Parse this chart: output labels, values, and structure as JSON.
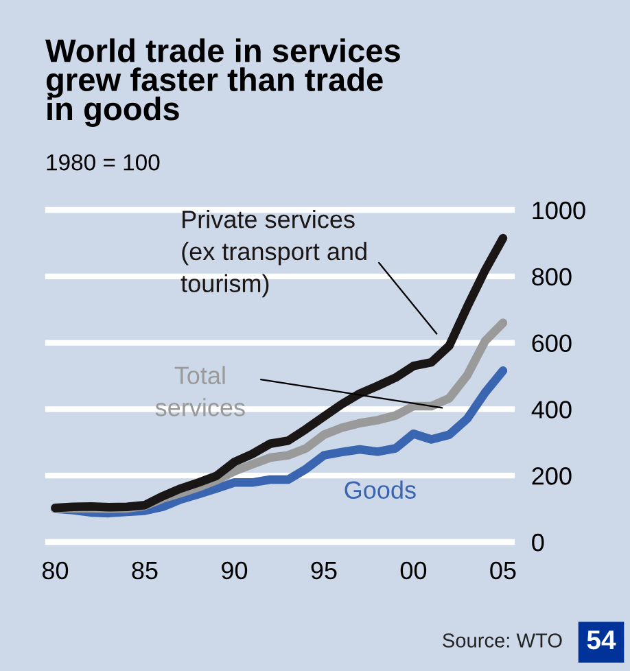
{
  "chart_data": {
    "type": "line",
    "title": "World trade in services\ngrew faster than trade\nin goods",
    "subtitle": "1980 = 100",
    "x": [
      1980,
      1981,
      1982,
      1983,
      1984,
      1985,
      1986,
      1987,
      1988,
      1989,
      1990,
      1991,
      1992,
      1993,
      1994,
      1995,
      1996,
      1997,
      1998,
      1999,
      2000,
      2001,
      2002,
      2003,
      2004,
      2005
    ],
    "series": [
      {
        "name": "Goods",
        "color": "#3a65b0",
        "values": [
          100,
          96,
          89,
          87,
          91,
          94,
          106,
          128,
          144,
          161,
          179,
          179,
          188,
          188,
          220,
          261,
          271,
          279,
          272,
          282,
          326,
          309,
          323,
          371,
          450,
          516
        ]
      },
      {
        "name": "Total\nservices",
        "color": "#9a9a9a",
        "values": [
          100,
          102,
          101,
          100,
          101,
          109,
          131,
          147,
          165,
          186,
          213,
          234,
          254,
          261,
          282,
          323,
          344,
          358,
          367,
          381,
          409,
          409,
          433,
          502,
          605,
          660
        ]
      },
      {
        "name": "Private services\n(ex transport and\ntourism)",
        "color": "#1a1616",
        "values": [
          103,
          106,
          107,
          105,
          106,
          111,
          138,
          161,
          179,
          199,
          241,
          265,
          296,
          305,
          340,
          378,
          415,
          447,
          470,
          495,
          530,
          541,
          591,
          708,
          818,
          915
        ]
      }
    ],
    "xlim": [
      1979.6,
      2005.5
    ],
    "ylim": [
      0,
      1000
    ],
    "xticks": [
      {
        "value": 1980,
        "label": "80"
      },
      {
        "value": 1985,
        "label": "85"
      },
      {
        "value": 1990,
        "label": "90"
      },
      {
        "value": 1995,
        "label": "95"
      },
      {
        "value": 2000,
        "label": "00"
      },
      {
        "value": 2005,
        "label": "05"
      }
    ],
    "yticks": [
      0,
      200,
      400,
      600,
      800,
      1000
    ],
    "grid": "y",
    "legend": false,
    "annotations": [
      "Source: WTO",
      "54"
    ]
  }
}
